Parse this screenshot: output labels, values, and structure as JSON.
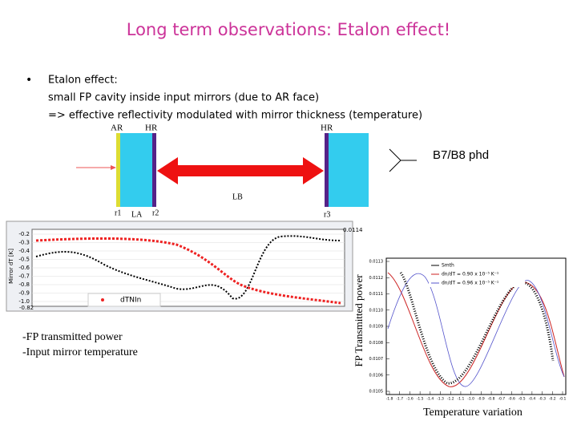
{
  "title": "Long term observations: Etalon effect!",
  "bullet": {
    "marker": "•",
    "lines": [
      "Etalon effect:",
      "small FP cavity inside input mirrors (due to AR face)",
      "=> effective reflectivity modulated with mirror thickness (temperature)"
    ]
  },
  "diagram": {
    "ar": "AR",
    "hr1": "HR",
    "hr2": "HR",
    "lb": "LB",
    "r1": "r1",
    "la": "LA",
    "r2": "r2",
    "r3": "r3",
    "detector": "B7/B8 phd"
  },
  "left_plot": {
    "ylabel": "Mirror dT [K]",
    "yticks": [
      "-0.2",
      "-0.3",
      "-0.4",
      "-0.5",
      "-0.6",
      "-0.7",
      "-0.8",
      "-0.9",
      "-1.0"
    ],
    "bottom_label": "-0.82",
    "right_label": "0.0114",
    "legend": "dTNIn"
  },
  "captions": [
    "-FP transmitted power",
    "-Input mirror temperature"
  ],
  "right_plot": {
    "ylabel": "FP Transmitted power",
    "xlabel": "Temperature variation",
    "yticks": [
      "0.0113",
      "0.0112",
      "0.0111",
      "0.0110",
      "0.0109",
      "0.0108",
      "0.0107",
      "0.0106",
      "0.0105"
    ],
    "xticks": [
      "-1.8",
      "-1.7",
      "-1.6",
      "-1.5",
      "-1.4",
      "-1.3",
      "-1.2",
      "-1.1",
      "-1.0",
      "-0.9",
      "-0.8",
      "-0.7",
      "-0.6",
      "-0.5",
      "-0.4",
      "-0.3",
      "-0.2",
      "-0.1"
    ],
    "legend": [
      "Smth",
      "dn/dT = 0.90 x 10⁻⁵ K⁻¹",
      "dn/dT = 0.96 x 10⁻⁵ K⁻¹"
    ]
  }
}
